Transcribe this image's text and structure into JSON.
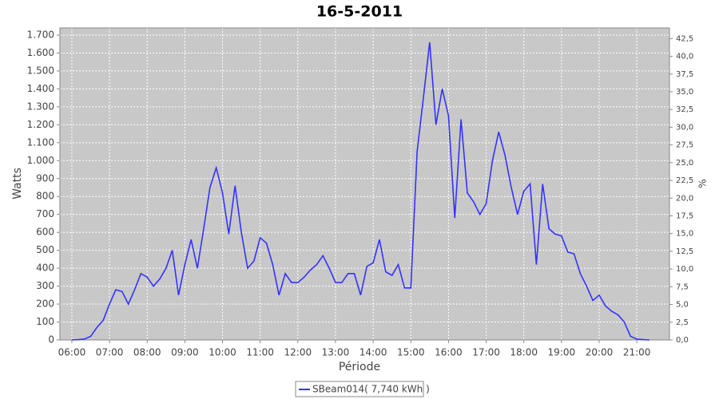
{
  "chart_data": {
    "type": "line",
    "title": "16-5-2011",
    "x_label": "Période",
    "y_label": "Watts",
    "y2_label": "%",
    "x": [
      "06:00",
      "06:10",
      "06:20",
      "06:30",
      "06:40",
      "06:50",
      "07:00",
      "07:10",
      "07:20",
      "07:30",
      "07:40",
      "07:50",
      "08:00",
      "08:10",
      "08:20",
      "08:30",
      "08:40",
      "08:50",
      "09:00",
      "09:10",
      "09:20",
      "09:30",
      "09:40",
      "09:50",
      "10:00",
      "10:10",
      "10:20",
      "10:30",
      "10:40",
      "10:50",
      "11:00",
      "11:10",
      "11:20",
      "11:30",
      "11:40",
      "11:50",
      "12:00",
      "12:10",
      "12:20",
      "12:30",
      "12:40",
      "12:50",
      "13:00",
      "13:10",
      "13:20",
      "13:30",
      "13:40",
      "13:50",
      "14:00",
      "14:10",
      "14:20",
      "14:30",
      "14:40",
      "14:50",
      "15:00",
      "15:10",
      "15:20",
      "15:30",
      "15:40",
      "15:50",
      "16:00",
      "16:10",
      "16:20",
      "16:30",
      "16:40",
      "16:50",
      "17:00",
      "17:10",
      "17:20",
      "17:30",
      "17:40",
      "17:50",
      "18:00",
      "18:10",
      "18:20",
      "18:30",
      "18:40",
      "18:50",
      "19:00",
      "19:10",
      "19:20",
      "19:30",
      "19:40",
      "19:50",
      "20:00",
      "20:10",
      "20:20",
      "20:30",
      "20:40",
      "20:50",
      "21:00",
      "21:10",
      "21:20"
    ],
    "series": [
      {
        "name": "SBeam014( 7,740 kWh )",
        "color": "#3333ff",
        "values": [
          0,
          2,
          5,
          20,
          70,
          110,
          200,
          280,
          270,
          200,
          280,
          370,
          350,
          300,
          340,
          400,
          500,
          250,
          420,
          560,
          400,
          620,
          850,
          960,
          820,
          590,
          860,
          600,
          400,
          440,
          570,
          540,
          420,
          250,
          370,
          320,
          320,
          350,
          390,
          420,
          470,
          400,
          320,
          320,
          370,
          370,
          250,
          410,
          430,
          560,
          380,
          360,
          420,
          290,
          290,
          1050,
          1350,
          1660,
          1200,
          1400,
          1250,
          680,
          1230,
          820,
          770,
          700,
          760,
          1000,
          1160,
          1030,
          850,
          700,
          830,
          870,
          420,
          870,
          620,
          590,
          580,
          490,
          480,
          370,
          300,
          220,
          250,
          190,
          160,
          140,
          100,
          20,
          5,
          2,
          0
        ]
      }
    ],
    "xlim": [
      "05:41",
      "21:52"
    ],
    "xticks": [
      "06:00",
      "07:00",
      "08:00",
      "09:00",
      "10:00",
      "11:00",
      "12:00",
      "13:00",
      "14:00",
      "15:00",
      "16:00",
      "17:00",
      "18:00",
      "19:00",
      "20:00",
      "21:00"
    ],
    "ylim": [
      0,
      1740
    ],
    "yticks": [
      0,
      100,
      200,
      300,
      400,
      500,
      600,
      700,
      800,
      900,
      {
        "value": 1000,
        "label": "1.000"
      },
      {
        "value": 1100,
        "label": "1.100"
      },
      {
        "value": 1200,
        "label": "1.200"
      },
      {
        "value": 1300,
        "label": "1.300"
      },
      {
        "value": 1400,
        "label": "1.400"
      },
      {
        "value": 1500,
        "label": "1.500"
      },
      {
        "value": 1600,
        "label": "1.600"
      },
      {
        "value": 1700,
        "label": "1.700"
      }
    ],
    "y2lim": [
      0,
      44
    ],
    "y2ticks": [
      {
        "value": 0,
        "label": "0,0"
      },
      {
        "value": 2.5,
        "label": "2,5"
      },
      {
        "value": 5,
        "label": "5,0"
      },
      {
        "value": 7.5,
        "label": "7,5"
      },
      {
        "value": 10,
        "label": "10,0"
      },
      {
        "value": 12.5,
        "label": "12,5"
      },
      {
        "value": 15,
        "label": "15,0"
      },
      {
        "value": 17.5,
        "label": "17,5"
      },
      {
        "value": 20,
        "label": "20,0"
      },
      {
        "value": 22.5,
        "label": "22,5"
      },
      {
        "value": 25,
        "label": "25,0"
      },
      {
        "value": 27.5,
        "label": "27,5"
      },
      {
        "value": 30,
        "label": "30,0"
      },
      {
        "value": 32.5,
        "label": "32,5"
      },
      {
        "value": 35,
        "label": "35,0"
      },
      {
        "value": 37.5,
        "label": "37,5"
      },
      {
        "value": 40,
        "label": "40,0"
      },
      {
        "value": 42.5,
        "label": "42,5"
      }
    ],
    "grid": true
  }
}
